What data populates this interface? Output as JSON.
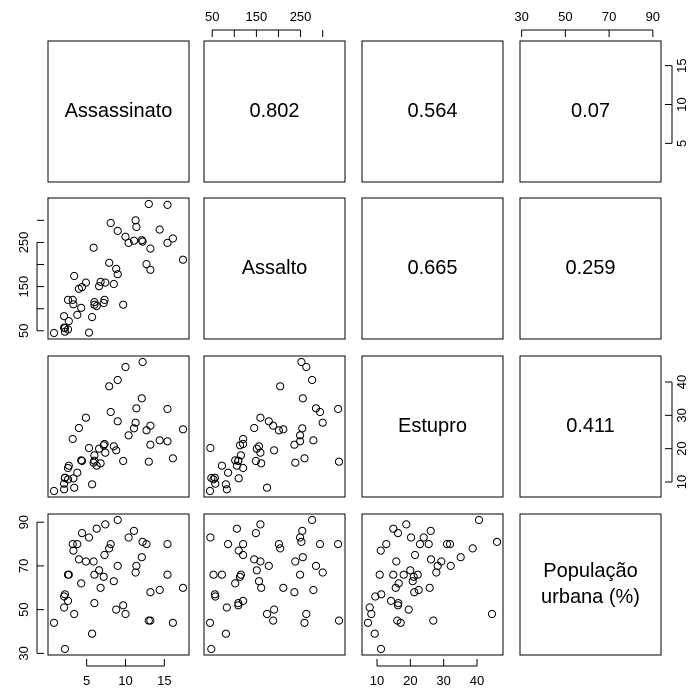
{
  "chart_data": {
    "type": "scatter",
    "subtype": "pairs",
    "variables": [
      {
        "name": "Assassinato",
        "label_lines": [
          "Assassinato"
        ],
        "ticks": [
          5,
          10,
          15
        ],
        "lim": [
          0.8,
          17.4
        ]
      },
      {
        "name": "Assalto",
        "label_lines": [
          "Assalto"
        ],
        "ticks": [
          50,
          150,
          250
        ],
        "lim": [
          45,
          337
        ]
      },
      {
        "name": "Estupro",
        "label_lines": [
          "Estupro"
        ],
        "ticks": [
          10,
          20,
          30,
          40
        ],
        "lim": [
          7.3,
          46
        ]
      },
      {
        "name": "População urbana (%)",
        "label_lines": [
          "População",
          "urbana (%)"
        ],
        "ticks": [
          30,
          50,
          70,
          90
        ],
        "lim": [
          32,
          91
        ]
      }
    ],
    "top_tick_labels": {
      "1": [
        "50",
        "150",
        "250"
      ],
      "3": [
        "30",
        "50",
        "70",
        "90"
      ]
    },
    "right_tick_labels": {
      "0": [
        "5",
        "10",
        "15"
      ],
      "2": [
        "10",
        "20",
        "30",
        "40"
      ]
    },
    "left_tick_labels": {
      "1": [
        "50",
        "150",
        "250"
      ],
      "3": [
        "30",
        "50",
        "70",
        "90"
      ]
    },
    "bottom_tick_labels": {
      "0": [
        "5",
        "10",
        "15"
      ],
      "2": [
        "10",
        "20",
        "30",
        "40"
      ]
    },
    "correlations": [
      {
        "row": 0,
        "col": 1,
        "text": "0.802"
      },
      {
        "row": 0,
        "col": 2,
        "text": "0.564"
      },
      {
        "row": 0,
        "col": 3,
        "text": "0.07"
      },
      {
        "row": 1,
        "col": 2,
        "text": "0.665"
      },
      {
        "row": 1,
        "col": 3,
        "text": "0.259"
      },
      {
        "row": 2,
        "col": 3,
        "text": "0.411"
      }
    ],
    "data": {
      "Assassinato": [
        13.2,
        10,
        8.1,
        8.8,
        9,
        7.9,
        3.3,
        5.9,
        15.4,
        17.4,
        5.3,
        2.6,
        10.4,
        7.2,
        2.2,
        6,
        9.7,
        15.4,
        2.1,
        11.3,
        4.4,
        12.1,
        2.7,
        16.1,
        9,
        6,
        4.3,
        12.2,
        2.1,
        7.4,
        11.4,
        11.1,
        13,
        0.8,
        7.3,
        6.6,
        4.9,
        6.3,
        3.4,
        14.4,
        3.8,
        13.2,
        12.7,
        3.2,
        2.2,
        8.5,
        4,
        5.7,
        2.6,
        6.8
      ],
      "Assalto": [
        236,
        263,
        294,
        190,
        276,
        204,
        110,
        238,
        335,
        211,
        46,
        120,
        249,
        113,
        56,
        115,
        109,
        249,
        83,
        300,
        149,
        255,
        72,
        259,
        178,
        109,
        102,
        252,
        57,
        159,
        285,
        254,
        337,
        45,
        120,
        151,
        159,
        106,
        174,
        279,
        86,
        188,
        201,
        120,
        48,
        156,
        145,
        81,
        53,
        161
      ],
      "Estupro": [
        21.2,
        44.5,
        31,
        19.5,
        40.6,
        38.7,
        11.1,
        15.8,
        31.9,
        25.8,
        20.2,
        14.2,
        24,
        21,
        11.3,
        18,
        16.3,
        22.2,
        7.8,
        27.8,
        16.3,
        35.1,
        14.9,
        17.1,
        28.2,
        16.4,
        16.5,
        46,
        9.5,
        18.8,
        32.1,
        26.1,
        16.1,
        7.3,
        21.4,
        20,
        29.3,
        14.9,
        8.3,
        22.5,
        12.8,
        26.9,
        25.5,
        22.9,
        11.2,
        20.7,
        26.2,
        9.3,
        10.8,
        15.6
      ],
      "População urbana (%)": [
        58,
        48,
        80,
        50,
        91,
        78,
        77,
        72,
        80,
        60,
        83,
        54,
        83,
        65,
        57,
        66,
        52,
        66,
        51,
        67,
        85,
        74,
        66,
        44,
        70,
        53,
        62,
        81,
        56,
        89,
        70,
        86,
        45,
        44,
        75,
        68,
        72,
        87,
        48,
        59,
        80,
        45,
        80,
        80,
        32,
        63,
        73,
        39,
        66,
        60
      ]
    }
  }
}
